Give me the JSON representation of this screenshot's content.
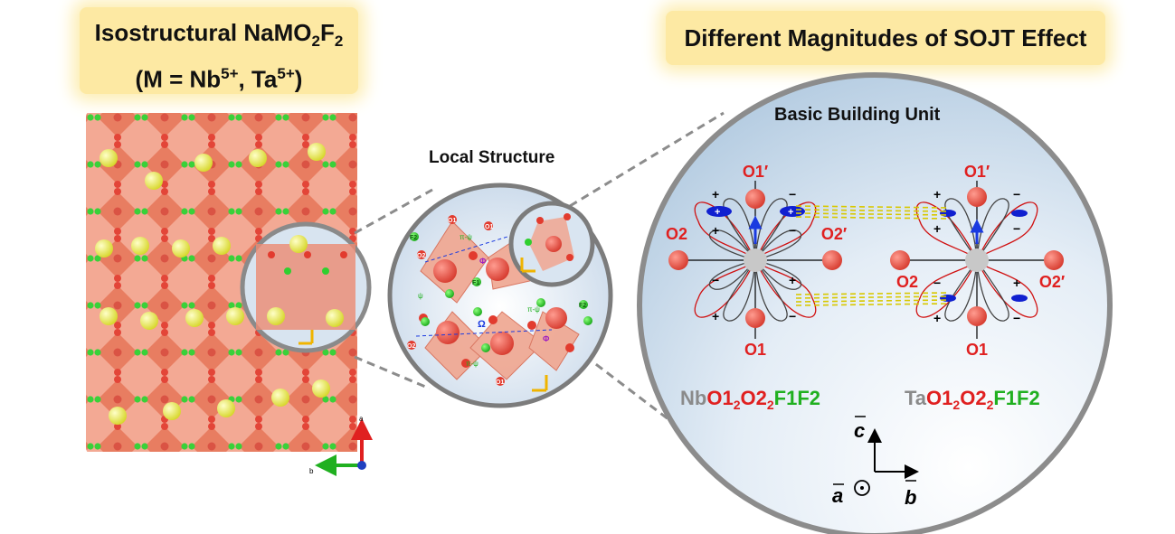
{
  "left_title": {
    "line1_pre": "Isostructural NaMO",
    "line1_sub1": "2",
    "line1_mid": "F",
    "line1_sub2": "2",
    "line2_pre": "(M = Nb",
    "line2_sup1": "5+",
    "line2_mid": ", Ta",
    "line2_sup2": "5+",
    "line2_post": ")"
  },
  "right_title": "Different Magnitudes of SOJT Effect",
  "local_structure_label": "Local Structure",
  "basic_building_unit_label": "Basic Building Unit",
  "crystal_axes": {
    "a": "a",
    "b": "b"
  },
  "local_labels": {
    "pi_psi": "π-ψ",
    "psi": "ψ",
    "phi": "Φ",
    "omega": "Ω"
  },
  "atom_labels": {
    "O1": "O1",
    "O2": "O2",
    "F1": "F1",
    "F2": "F2"
  },
  "units": [
    {
      "o1_prime": "O1′",
      "o2": "O2",
      "o2_prime": "O2′",
      "o1": "O1",
      "formula": {
        "metal": "Nb",
        "o1": "O1",
        "o1_sub": "2",
        "o2": "O2",
        "o2_sub": "2",
        "f": "F1F2"
      }
    },
    {
      "o1_prime": "O1′",
      "o2": "O2",
      "o2_prime": "O2′",
      "o1": "O1",
      "formula": {
        "metal": "Ta",
        "o1": "O1",
        "o1_sub": "2",
        "o2": "O2",
        "o2_sub": "2",
        "f": "F1F2"
      }
    }
  ],
  "lobe_signs": {
    "plus": "+",
    "minus": "−"
  },
  "axes": {
    "c": "c",
    "a": "a",
    "b": "b"
  },
  "colors": {
    "oxygen": "#e8524a",
    "fluorine": "#22c322",
    "sodium": "#f3f34a",
    "metal": "#c8c8c8",
    "polyhedron": "#e8826a",
    "formula_red": "#e02020",
    "formula_green": "#20b020",
    "formula_gray": "#8a8a8a",
    "banner": "#fde9a3"
  }
}
